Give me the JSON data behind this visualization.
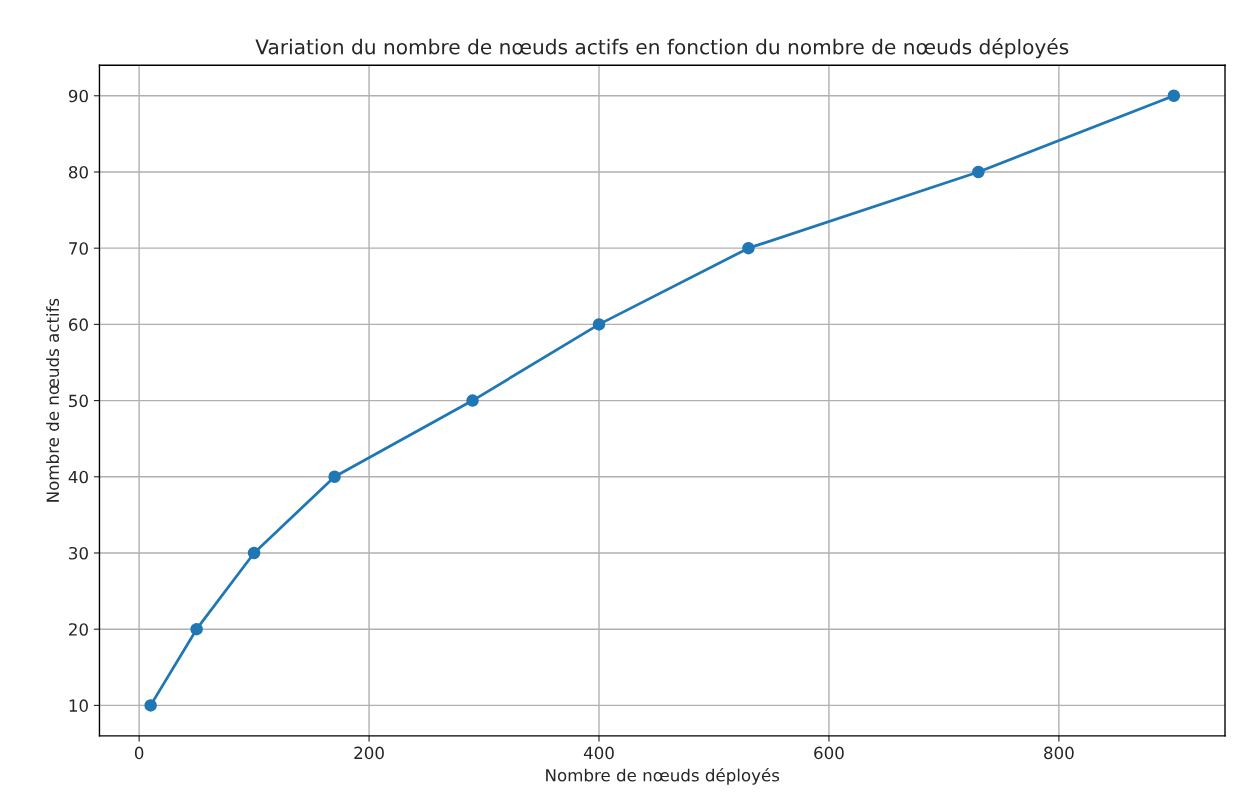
{
  "chart_data": {
    "type": "line",
    "title": "Variation du nombre de nœuds actifs en fonction du nombre de nœuds déployés",
    "xlabel": "Nombre de nœuds déployés",
    "ylabel": "Nombre de nœuds actifs",
    "series": [
      {
        "color": "#1f77b4",
        "x": [
          10,
          50,
          100,
          170,
          290,
          400,
          530,
          730,
          900
        ],
        "values": [
          10,
          20,
          30,
          40,
          50,
          60,
          70,
          80,
          90
        ]
      }
    ],
    "xlim": [
      -34.5,
      944.5
    ],
    "ylim": [
      6,
      94
    ],
    "xticks": [
      0,
      200,
      400,
      600,
      800
    ],
    "yticks": [
      10,
      20,
      30,
      40,
      50,
      60,
      70,
      80,
      90
    ],
    "grid": true,
    "marker": "circle",
    "line_style": "solid"
  }
}
